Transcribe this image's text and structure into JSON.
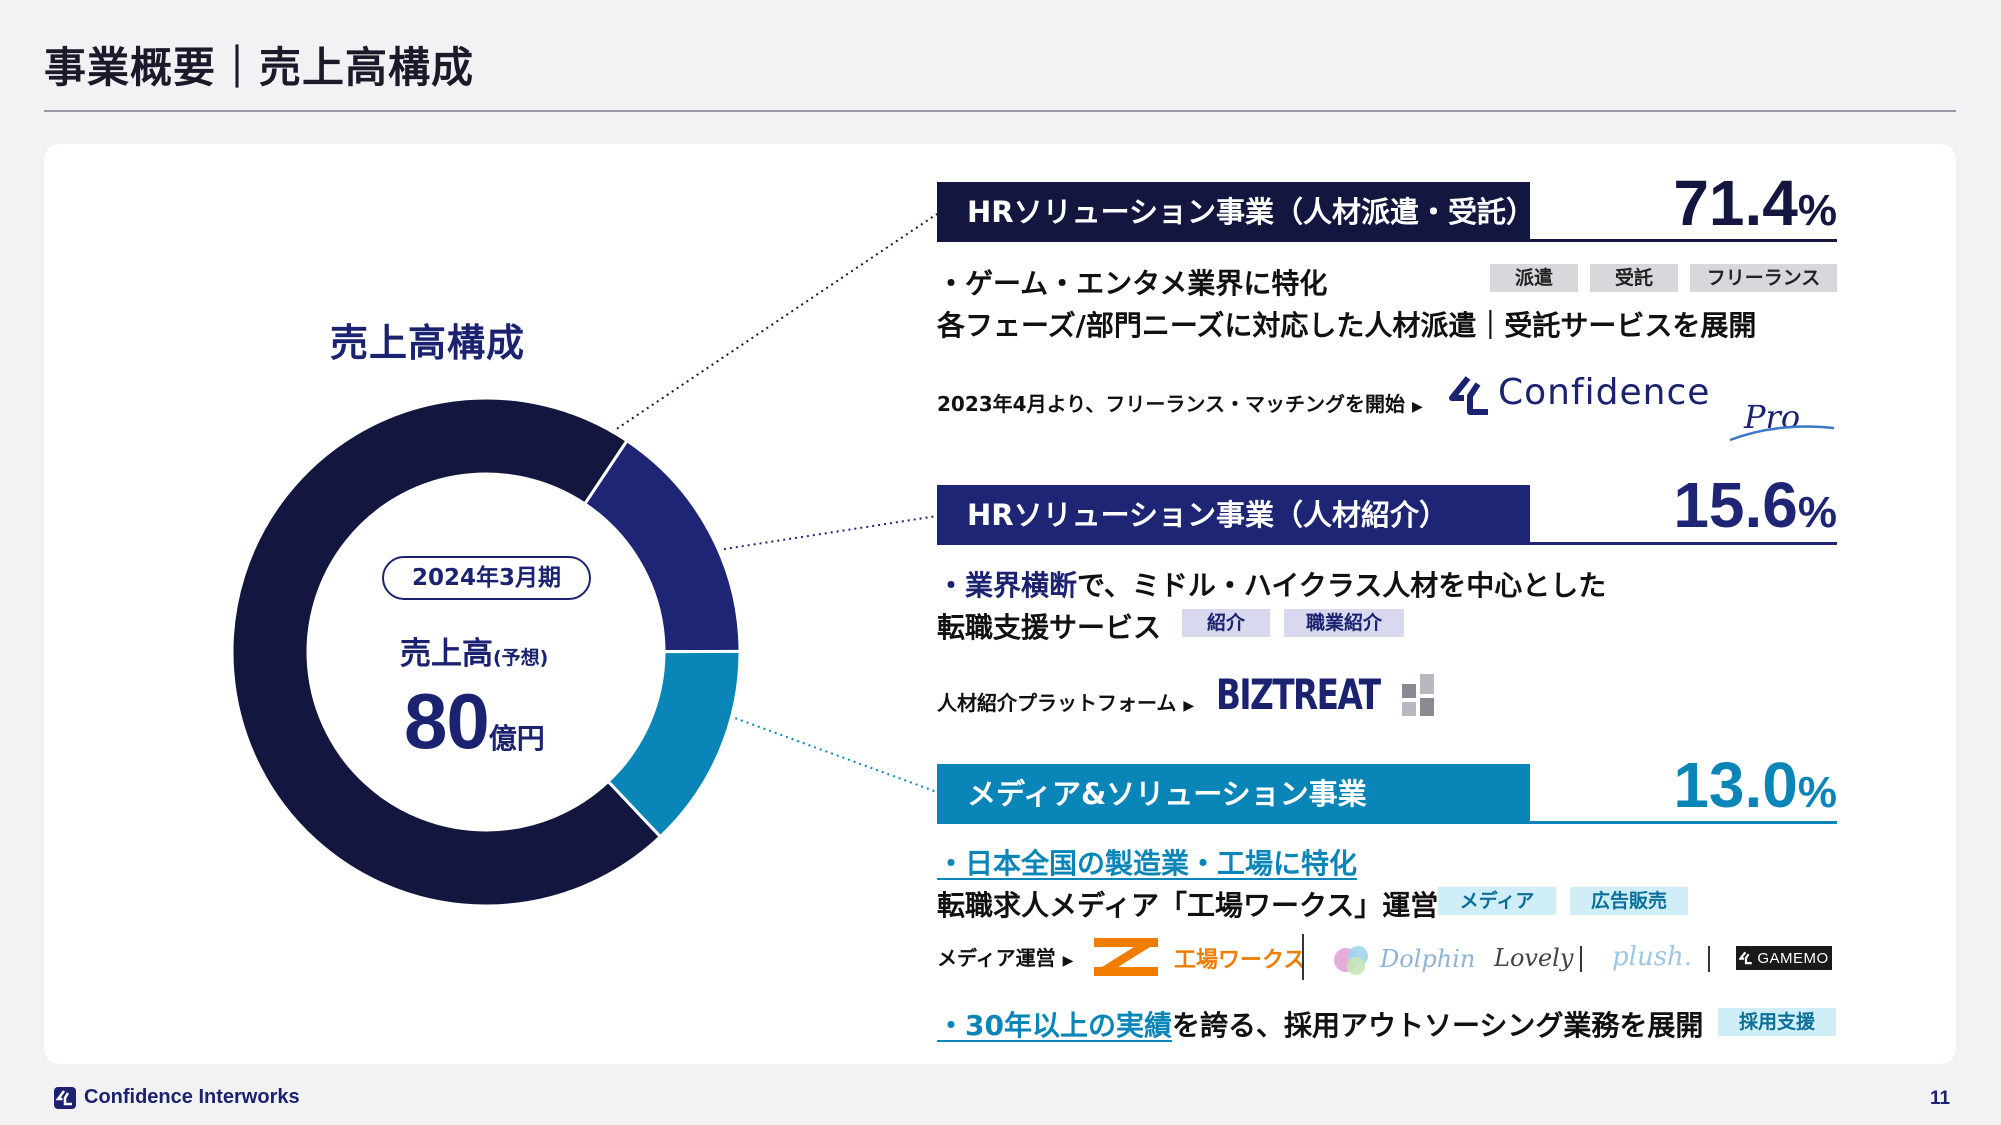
{
  "header": {
    "title": "事業概要｜売上高構成"
  },
  "chart_heading": "売上高構成",
  "center": {
    "period": "2024年3月期",
    "sales_label": "売上高",
    "sales_note": "(予想)",
    "sales_value": "80",
    "sales_unit": "億円"
  },
  "colors": {
    "navy": "#13163f",
    "indigo": "#1f2575",
    "teal": "#0a85b8"
  },
  "chart_data": {
    "type": "pie",
    "title": "売上高構成",
    "slices": [
      {
        "label": "HRソリューション事業（人材派遣・受託）",
        "value": 71.4
      },
      {
        "label": "HRソリューション事業（人材紹介）",
        "value": 15.6
      },
      {
        "label": "メディア&ソリューション事業",
        "value": 13.0
      }
    ]
  },
  "segments": [
    {
      "title": "HRソリューション事業（人材派遣・受託）",
      "pct_value": "71.4",
      "pct_sign": "%",
      "bullet1": "・ゲーム・エンタメ業界に特化",
      "line2": "各フェーズ/部門ニーズに対応した人材派遣｜受託サービスを展開",
      "tags": [
        "派遣",
        "受託",
        "フリーランス"
      ],
      "note": "2023年4月より、フリーランス・マッチングを開始",
      "logo_main": "Confidence",
      "logo_sub": "Pro"
    },
    {
      "title": "HRソリューション事業（人材紹介）",
      "pct_value": "15.6",
      "pct_sign": "%",
      "bullet_highlight": "・業界横断",
      "bullet_rest": "で、ミドル・ハイクラス人材を中心とした",
      "line2": "転職支援サービス",
      "tags": [
        "紹介",
        "職業紹介"
      ],
      "note": "人材紹介プラットフォーム",
      "logo_main": "BIZTREAT"
    },
    {
      "title": "メディア&ソリューション事業",
      "pct_value": "13.0",
      "pct_sign": "%",
      "bullet1": "・日本全国の製造業・工場に特化",
      "line2": "転職求人メディア「工場ワークス」運営",
      "tags": [
        "メディア",
        "広告販売"
      ],
      "note": "メディア運営",
      "logos": [
        "工場ワークス",
        "Dolphin",
        "Lovely",
        "plush.",
        "GAMEMO"
      ],
      "bullet3_highlight": "・30年以上の実績",
      "bullet3_rest": "を誇る、採用アウトソーシング業務を展開",
      "tag3": "採用支援"
    }
  ],
  "footer": {
    "company": "Confidence Interworks",
    "page": "11"
  }
}
